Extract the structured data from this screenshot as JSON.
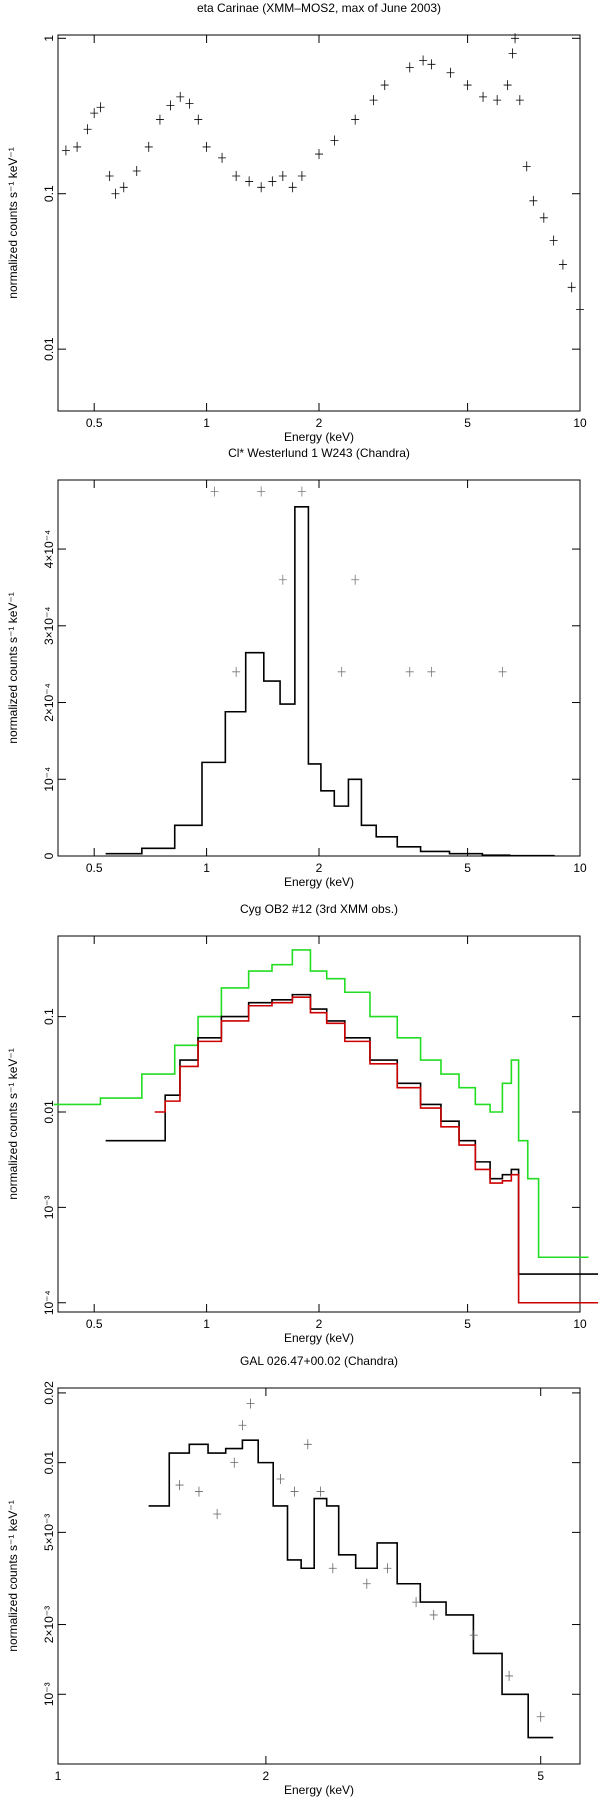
{
  "chart_data": [
    {
      "type": "line",
      "title": "eta Carinae (XMM–MOS2, max of June 2003)",
      "xlabel": "Energy (keV)",
      "ylabel": "normalized counts s⁻¹ keV⁻¹",
      "xlog": true,
      "ylog": true,
      "xlim": [
        0.4,
        10
      ],
      "ylim": [
        0.004,
        1.05
      ],
      "xticks": [
        0.5,
        1,
        2,
        5,
        10
      ],
      "yticks": [
        0.01,
        0.1,
        1
      ],
      "series": [
        {
          "color": "#000000",
          "style": "points",
          "x": [
            0.42,
            0.45,
            0.48,
            0.5,
            0.52,
            0.55,
            0.57,
            0.6,
            0.65,
            0.7,
            0.75,
            0.8,
            0.85,
            0.9,
            0.95,
            1.0,
            1.1,
            1.2,
            1.3,
            1.4,
            1.5,
            1.6,
            1.7,
            1.8,
            2.0,
            2.2,
            2.5,
            2.8,
            3.0,
            3.5,
            3.8,
            4.0,
            4.5,
            5.0,
            5.5,
            6.0,
            6.4,
            6.6,
            6.7,
            6.9,
            7.2,
            7.5,
            8,
            8.5,
            9,
            9.5,
            10
          ],
          "values": [
            0.19,
            0.2,
            0.26,
            0.33,
            0.36,
            0.13,
            0.1,
            0.11,
            0.14,
            0.2,
            0.3,
            0.37,
            0.42,
            0.38,
            0.3,
            0.2,
            0.17,
            0.13,
            0.12,
            0.11,
            0.12,
            0.13,
            0.11,
            0.13,
            0.18,
            0.22,
            0.3,
            0.4,
            0.5,
            0.65,
            0.72,
            0.68,
            0.6,
            0.5,
            0.42,
            0.4,
            0.5,
            0.8,
            1.0,
            0.4,
            0.15,
            0.09,
            0.07,
            0.05,
            0.035,
            0.025,
            0.018
          ]
        }
      ]
    },
    {
      "type": "line",
      "title": "Cl* Westerlund 1 W243 (Chandra)",
      "xlabel": "Energy (keV)",
      "ylabel": "normalized counts s⁻¹ keV⁻¹",
      "xlog": true,
      "ylog": false,
      "xlim": [
        0.4,
        10
      ],
      "ylim": [
        0,
        0.00049
      ],
      "xticks": [
        0.5,
        1,
        2,
        5,
        10
      ],
      "yticks": [
        0,
        {
          "value": 0.0001,
          "label": "10⁻⁴"
        },
        {
          "value": 0.0002,
          "label": "2×10⁻⁴"
        },
        {
          "value": 0.0003,
          "label": "3×10⁻⁴"
        },
        {
          "value": 0.0004,
          "label": "4×10⁻⁴"
        }
      ],
      "series": [
        {
          "color": "#000000",
          "style": "step",
          "x": [
            0.6,
            0.75,
            0.9,
            1.05,
            1.2,
            1.35,
            1.5,
            1.65,
            1.8,
            1.95,
            2.1,
            2.3,
            2.5,
            2.7,
            3.0,
            3.5,
            4,
            5,
            6,
            7,
            8
          ],
          "values": [
            3e-06,
            1e-05,
            4e-05,
            0.000122,
            0.000188,
            0.000265,
            0.000228,
            0.000198,
            0.000455,
            0.00012,
            8.5e-05,
            6.5e-05,
            0.0001,
            4e-05,
            2.5e-05,
            1.2e-05,
            6e-06,
            3e-06,
            1e-06,
            5e-07,
            5e-07
          ]
        },
        {
          "color": "#777777",
          "style": "points",
          "x": [
            1.05,
            1.2,
            1.4,
            1.6,
            1.8,
            2.3,
            2.5,
            3.5,
            4.0,
            6.2
          ],
          "values": [
            0.000475,
            0.00024,
            0.000475,
            0.00036,
            0.000475,
            0.00024,
            0.00036,
            0.00024,
            0.00024,
            0.00024
          ]
        }
      ]
    },
    {
      "type": "line",
      "title": "Cyg OB2 #12 (3rd XMM obs.)",
      "xlabel": "Energy (keV)",
      "ylabel": "normalized counts s⁻¹ keV⁻¹",
      "xlog": true,
      "ylog": true,
      "xlim": [
        0.4,
        10
      ],
      "ylim": [
        8e-05,
        0.7
      ],
      "xticks": [
        0.5,
        1,
        2,
        5,
        10
      ],
      "yticks": [
        0.1,
        0.01,
        {
          "value": 0.001,
          "label": "10⁻³"
        },
        {
          "value": 0.0001,
          "label": "10⁻⁴"
        }
      ],
      "series": [
        {
          "color": "#22dd22",
          "style": "step",
          "x": [
            0.45,
            0.6,
            0.75,
            0.9,
            1.0,
            1.2,
            1.4,
            1.6,
            1.8,
            2.0,
            2.2,
            2.5,
            3,
            3.5,
            4,
            4.5,
            5,
            5.5,
            6,
            6.4,
            6.7,
            7,
            7.5,
            8,
            9,
            10
          ],
          "values": [
            0.012,
            0.014,
            0.025,
            0.05,
            0.1,
            0.2,
            0.3,
            0.35,
            0.5,
            0.3,
            0.25,
            0.18,
            0.1,
            0.06,
            0.035,
            0.025,
            0.018,
            0.012,
            0.01,
            0.02,
            0.035,
            0.005,
            0.002,
            0.0003,
            0.0003,
            0.0003
          ]
        },
        {
          "color": "#000000",
          "style": "step",
          "x": [
            0.6,
            0.75,
            0.8,
            0.9,
            1.0,
            1.2,
            1.4,
            1.6,
            1.8,
            2.0,
            2.2,
            2.5,
            3,
            3.5,
            4,
            4.5,
            5,
            5.5,
            6,
            6.4,
            6.7,
            7,
            8,
            10
          ],
          "values": [
            0.005,
            0.005,
            0.015,
            0.035,
            0.06,
            0.1,
            0.14,
            0.15,
            0.17,
            0.12,
            0.09,
            0.06,
            0.035,
            0.02,
            0.012,
            0.008,
            0.005,
            0.003,
            0.002,
            0.0022,
            0.0025,
            0.0002,
            0.0002,
            0.0002
          ]
        },
        {
          "color": "#cc0000",
          "style": "step",
          "x": [
            0.75,
            0.8,
            0.9,
            1.0,
            1.2,
            1.4,
            1.6,
            1.8,
            2.0,
            2.2,
            2.5,
            3,
            3.5,
            4,
            4.5,
            5,
            5.5,
            6,
            6.4,
            6.7,
            7,
            8,
            10
          ],
          "values": [
            0.01,
            0.013,
            0.03,
            0.055,
            0.09,
            0.13,
            0.14,
            0.16,
            0.11,
            0.085,
            0.055,
            0.032,
            0.018,
            0.011,
            0.007,
            0.0045,
            0.0025,
            0.0018,
            0.0019,
            0.0022,
            0.0001,
            0.0001,
            0.0001
          ]
        }
      ]
    },
    {
      "type": "line",
      "title": "GAL 026.47+00.02 (Chandra)",
      "xlabel": "Energy (keV)",
      "ylabel": "normalized counts s⁻¹ keV⁻¹",
      "xlog": true,
      "ylog": true,
      "xlim": [
        1,
        5.7
      ],
      "ylim": [
        0.0005,
        0.021
      ],
      "xticks": [
        1,
        2,
        5
      ],
      "yticks": [
        0.02,
        0.01,
        {
          "value": 0.005,
          "label": "5×10⁻³"
        },
        {
          "value": 0.002,
          "label": "2×10⁻³"
        },
        {
          "value": 0.001,
          "label": "10⁻³"
        }
      ],
      "series": [
        {
          "color": "#000000",
          "style": "step",
          "x": [
            1.4,
            1.5,
            1.6,
            1.7,
            1.8,
            1.9,
            2.0,
            2.1,
            2.2,
            2.3,
            2.4,
            2.5,
            2.6,
            2.8,
            3,
            3.2,
            3.5,
            3.8,
            4.2,
            4.6,
            5
          ],
          "values": [
            0.0065,
            0.011,
            0.012,
            0.011,
            0.0115,
            0.0125,
            0.01,
            0.0065,
            0.0038,
            0.0035,
            0.007,
            0.0065,
            0.004,
            0.0035,
            0.0045,
            0.003,
            0.0025,
            0.0022,
            0.0015,
            0.001,
            0.00065
          ]
        },
        {
          "color": "#666666",
          "style": "points",
          "x": [
            1.5,
            1.6,
            1.7,
            1.8,
            1.85,
            1.9,
            2.1,
            2.2,
            2.3,
            2.4,
            2.5,
            2.8,
            3,
            3.3,
            3.5,
            4,
            4.5,
            5
          ],
          "values": [
            0.008,
            0.0075,
            0.006,
            0.01,
            0.0145,
            0.018,
            0.0085,
            0.0075,
            0.012,
            0.0075,
            0.0035,
            0.003,
            0.0035,
            0.0025,
            0.0022,
            0.0018,
            0.0012,
            0.0008
          ]
        }
      ]
    }
  ]
}
